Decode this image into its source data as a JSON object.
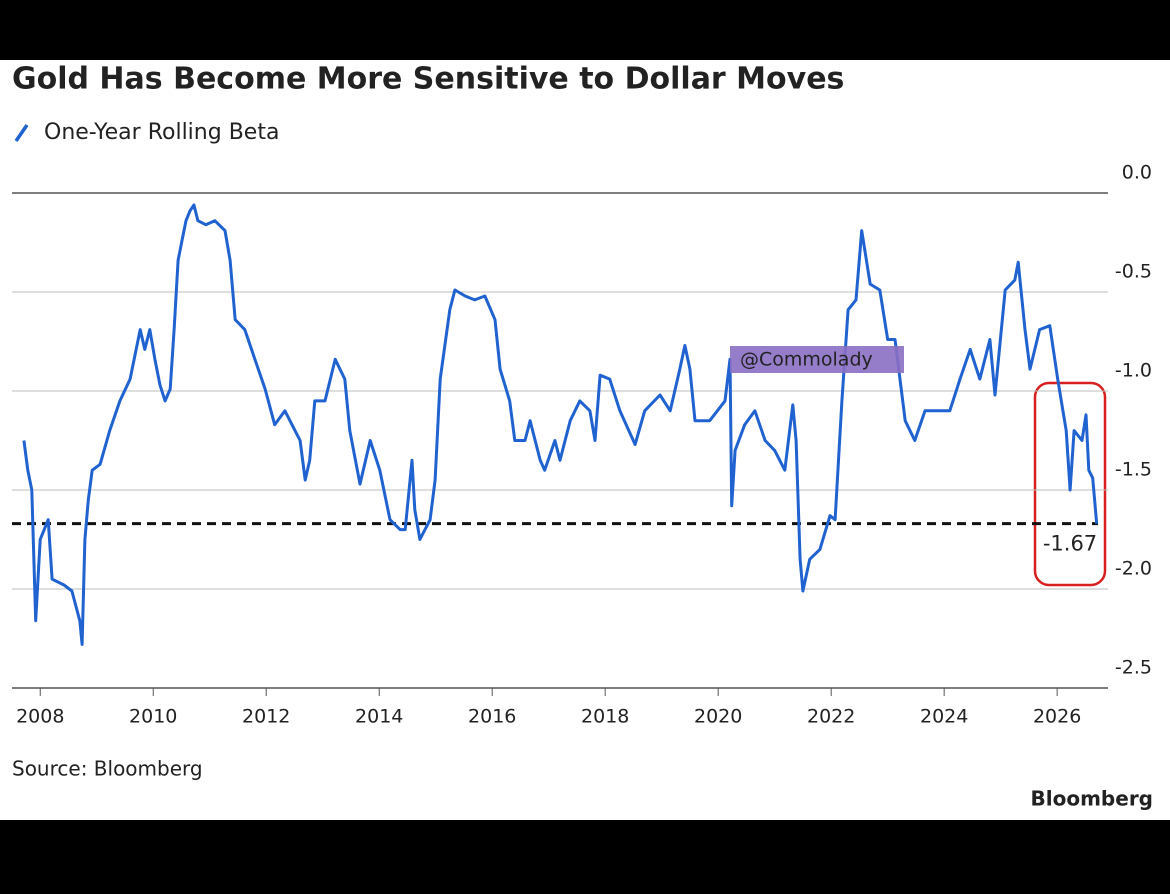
{
  "chart_data": {
    "type": "line",
    "title": "Gold Has Become More Sensitive to Dollar Moves",
    "source": "Source: Bloomberg",
    "brand": "Bloomberg",
    "watermark": "@Commolady",
    "legend": "top-left",
    "grid": true,
    "xlim": [
      2007.5,
      2026.9
    ],
    "xticks": [
      2008,
      2010,
      2012,
      2014,
      2016,
      2018,
      2020,
      2022,
      2024,
      2026
    ],
    "ylim": [
      -2.5,
      0
    ],
    "yticks": [
      {
        "value": 0,
        "label": "0.0"
      },
      {
        "value": -0.5,
        "label": "-0.5"
      },
      {
        "value": -1,
        "label": "-1.0"
      },
      {
        "value": -1.5,
        "label": "-1.5"
      },
      {
        "value": -2,
        "label": "-2.0"
      },
      {
        "value": -2.5,
        "label": "-2.5"
      }
    ],
    "reference_line": {
      "value": -1.67,
      "style": "dashed",
      "color": "#111111"
    },
    "x": [
      2007.71,
      2007.78,
      2007.85,
      2007.92,
      2008.0,
      2008.14,
      2008.21,
      2008.42,
      2008.56,
      2008.7,
      2008.74,
      2008.79,
      2008.85,
      2008.92,
      2009.06,
      2009.23,
      2009.41,
      2009.59,
      2009.77,
      2009.85,
      2009.94,
      2010.03,
      2010.12,
      2010.21,
      2010.3,
      2010.37,
      2010.44,
      2010.51,
      2010.58,
      2010.65,
      2010.72,
      2010.79,
      2010.93,
      2011.09,
      2011.27,
      2011.36,
      2011.45,
      2011.62,
      2011.8,
      2011.98,
      2012.15,
      2012.33,
      2012.51,
      2012.6,
      2012.69,
      2012.77,
      2012.86,
      2013.04,
      2013.22,
      2013.39,
      2013.48,
      2013.66,
      2013.84,
      2014.01,
      2014.19,
      2014.37,
      2014.46,
      2014.58,
      2014.63,
      2014.72,
      2014.9,
      2014.99,
      2015.08,
      2015.25,
      2015.34,
      2015.52,
      2015.69,
      2015.87,
      2016.05,
      2016.14,
      2016.31,
      2016.4,
      2016.58,
      2016.67,
      2016.85,
      2016.93,
      2017.11,
      2017.2,
      2017.38,
      2017.55,
      2017.73,
      2017.82,
      2017.91,
      2018.08,
      2018.26,
      2018.53,
      2018.7,
      2018.97,
      2019.15,
      2019.32,
      2019.41,
      2019.5,
      2019.59,
      2019.85,
      2020.12,
      2020.21,
      2020.24,
      2020.3,
      2020.47,
      2020.65,
      2020.83,
      2021.0,
      2021.18,
      2021.32,
      2021.38,
      2021.45,
      2021.5,
      2021.62,
      2021.8,
      2021.98,
      2022.07,
      2022.19,
      2022.3,
      2022.44,
      2022.54,
      2022.69,
      2022.86,
      2023.0,
      2023.13,
      2023.31,
      2023.48,
      2023.66,
      2023.84,
      2024.1,
      2024.28,
      2024.46,
      2024.63,
      2024.81,
      2024.9,
      2025.08,
      2025.25,
      2025.31,
      2025.43,
      2025.52,
      2025.69,
      2025.87,
      2026.01,
      2026.16,
      2026.23,
      2026.3,
      2026.44,
      2026.51,
      2026.56,
      2026.63,
      2026.7
    ],
    "series": [
      {
        "name": "One-Year Rolling Beta",
        "color": "#1f62d0",
        "values": [
          -1.25,
          -1.4,
          -1.5,
          -2.16,
          -1.75,
          -1.65,
          -1.95,
          -1.98,
          -2.01,
          -2.16,
          -2.28,
          -1.75,
          -1.55,
          -1.4,
          -1.37,
          -1.2,
          -1.05,
          -0.94,
          -0.69,
          -0.79,
          -0.69,
          -0.84,
          -0.97,
          -1.05,
          -0.99,
          -0.69,
          -0.34,
          -0.24,
          -0.14,
          -0.09,
          -0.06,
          -0.14,
          -0.16,
          -0.14,
          -0.19,
          -0.34,
          -0.64,
          -0.69,
          -0.84,
          -0.99,
          -1.17,
          -1.1,
          -1.2,
          -1.25,
          -1.45,
          -1.35,
          -1.05,
          -1.05,
          -0.84,
          -0.94,
          -1.2,
          -1.47,
          -1.25,
          -1.4,
          -1.65,
          -1.7,
          -1.7,
          -1.35,
          -1.6,
          -1.75,
          -1.65,
          -1.45,
          -0.94,
          -0.59,
          -0.49,
          -0.52,
          -0.54,
          -0.52,
          -0.64,
          -0.89,
          -1.05,
          -1.25,
          -1.25,
          -1.15,
          -1.35,
          -1.4,
          -1.25,
          -1.35,
          -1.15,
          -1.05,
          -1.1,
          -1.25,
          -0.92,
          -0.94,
          -1.1,
          -1.27,
          -1.1,
          -1.02,
          -1.1,
          -0.89,
          -0.77,
          -0.89,
          -1.15,
          -1.15,
          -1.05,
          -0.84,
          -1.58,
          -1.3,
          -1.17,
          -1.1,
          -1.25,
          -1.3,
          -1.4,
          -1.07,
          -1.25,
          -1.85,
          -2.01,
          -1.85,
          -1.8,
          -1.63,
          -1.65,
          -1.05,
          -0.59,
          -0.54,
          -0.19,
          -0.46,
          -0.49,
          -0.74,
          -0.74,
          -1.15,
          -1.25,
          -1.1,
          -1.1,
          -1.1,
          -0.94,
          -0.79,
          -0.94,
          -0.74,
          -1.02,
          -0.49,
          -0.44,
          -0.35,
          -0.69,
          -0.89,
          -0.69,
          -0.67,
          -0.94,
          -1.2,
          -1.5,
          -1.2,
          -1.25,
          -1.12,
          -1.4,
          -1.44,
          -1.67
        ]
      }
    ]
  }
}
